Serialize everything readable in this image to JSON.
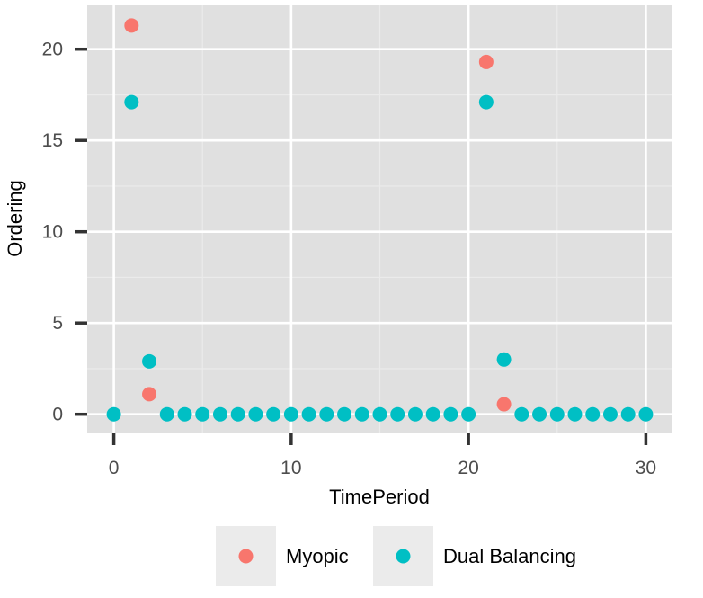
{
  "chart_data": {
    "type": "scatter",
    "xlabel": "TimePeriod",
    "ylabel": "Ordering",
    "xlim": [
      -1.5,
      31.5
    ],
    "ylim": [
      -1,
      22.4
    ],
    "x_ticks": [
      0,
      10,
      20,
      30
    ],
    "y_ticks": [
      0,
      5,
      10,
      15,
      20
    ],
    "grid": true,
    "legend_position": "bottom",
    "series": [
      {
        "name": "Myopic",
        "color": "#F8766D",
        "points": [
          [
            1,
            21.3
          ],
          [
            2,
            1.1
          ],
          [
            21,
            19.3
          ],
          [
            22,
            0.55
          ]
        ]
      },
      {
        "name": "Dual Balancing",
        "color": "#00BFC4",
        "x": [
          0,
          1,
          2,
          3,
          4,
          5,
          6,
          7,
          8,
          9,
          10,
          11,
          12,
          13,
          14,
          15,
          16,
          17,
          18,
          19,
          20,
          21,
          22,
          23,
          24,
          25,
          26,
          27,
          28,
          29,
          30
        ],
        "y": [
          0,
          17.1,
          2.9,
          0,
          0,
          0,
          0,
          0,
          0,
          0,
          0,
          0,
          0,
          0,
          0,
          0,
          0,
          0,
          0,
          0,
          0,
          17.1,
          3.0,
          0,
          0,
          0,
          0,
          0,
          0,
          0,
          0
        ]
      }
    ]
  }
}
